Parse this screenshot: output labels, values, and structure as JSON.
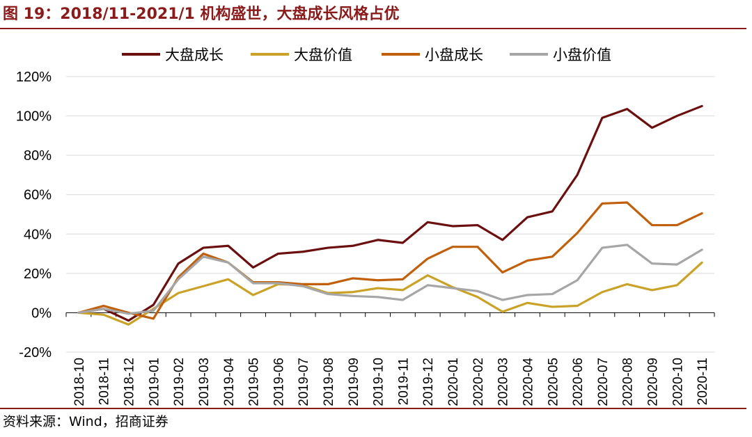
{
  "header": {
    "title": "图 19：2018/11-2021/1 机构盛世，大盘成长风格占优"
  },
  "footer": {
    "source": "资料来源：Wind，招商证券"
  },
  "colors": {
    "brand": "#8b1a1a",
    "gridline": "#d9d9d9",
    "axis": "#000000"
  },
  "chart_data": {
    "type": "line",
    "title": "",
    "xlabel": "",
    "ylabel": "",
    "ylim": [
      -0.2,
      1.2
    ],
    "yticks": [
      -0.2,
      0,
      0.2,
      0.4,
      0.6,
      0.8,
      1.0,
      1.2
    ],
    "ytick_labels": [
      "-20%",
      "0%",
      "20%",
      "40%",
      "60%",
      "80%",
      "100%",
      "120%"
    ],
    "grid": "horizontal",
    "legend": "top",
    "categories": [
      "2018-10",
      "2018-11",
      "2018-12",
      "2019-01",
      "2019-02",
      "2019-03",
      "2019-04",
      "2019-05",
      "2019-06",
      "2019-07",
      "2019-08",
      "2019-09",
      "2019-10",
      "2019-11",
      "2019-12",
      "2020-01",
      "2020-02",
      "2020-03",
      "2020-04",
      "2020-05",
      "2020-06",
      "2020-07",
      "2020-08",
      "2020-09",
      "2020-10",
      "2020-11"
    ],
    "series": [
      {
        "name": "大盘成长",
        "color": "#6b0f0f",
        "values": [
          0.0,
          0.02,
          -0.04,
          0.04,
          0.25,
          0.33,
          0.34,
          0.23,
          0.3,
          0.31,
          0.33,
          0.34,
          0.37,
          0.355,
          0.46,
          0.44,
          0.445,
          0.37,
          0.485,
          0.515,
          0.7,
          0.99,
          1.035,
          0.94,
          1.0,
          1.05
        ]
      },
      {
        "name": "大盘价值",
        "color": "#c9a227",
        "values": [
          0.0,
          -0.01,
          -0.06,
          0.02,
          0.1,
          0.135,
          0.17,
          0.09,
          0.145,
          0.14,
          0.1,
          0.105,
          0.125,
          0.115,
          0.19,
          0.13,
          0.08,
          0.005,
          0.05,
          0.03,
          0.035,
          0.105,
          0.145,
          0.115,
          0.14,
          0.255
        ]
      },
      {
        "name": "小盘成长",
        "color": "#c0600c",
        "values": [
          0.0,
          0.035,
          0.0,
          -0.03,
          0.18,
          0.3,
          0.255,
          0.155,
          0.155,
          0.145,
          0.145,
          0.175,
          0.165,
          0.17,
          0.275,
          0.335,
          0.335,
          0.205,
          0.265,
          0.285,
          0.405,
          0.555,
          0.56,
          0.445,
          0.445,
          0.505
        ]
      },
      {
        "name": "小盘价值",
        "color": "#a6a6a6",
        "values": [
          0.0,
          0.02,
          -0.005,
          0.01,
          0.17,
          0.285,
          0.255,
          0.15,
          0.15,
          0.135,
          0.095,
          0.085,
          0.08,
          0.065,
          0.14,
          0.125,
          0.11,
          0.065,
          0.09,
          0.095,
          0.165,
          0.33,
          0.345,
          0.25,
          0.245,
          0.32
        ]
      }
    ]
  }
}
